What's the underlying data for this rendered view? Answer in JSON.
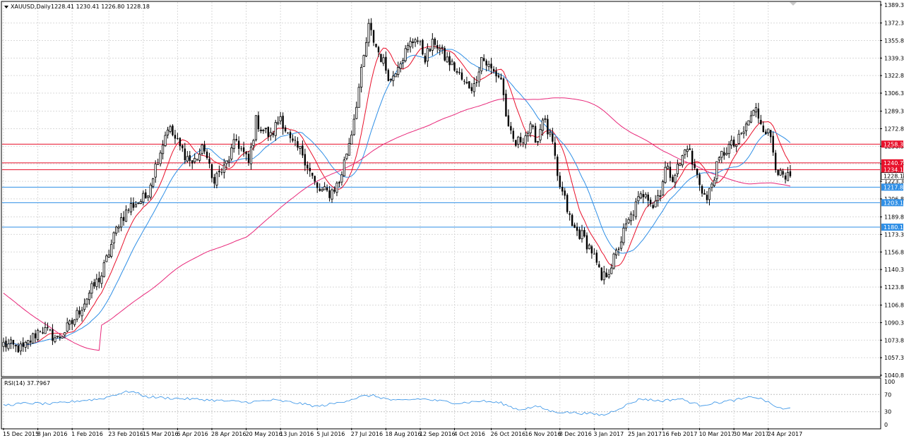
{
  "chart_header": {
    "symbol": "XAUUSD,Daily",
    "ohlc": "1228.41 1230.41 1226.80 1228.18"
  },
  "indicator_header": "RSI(14) 37.7967",
  "colors": {
    "up_candle": "#000000",
    "down_candle": "#000000",
    "ma_fast": "#e8102a",
    "ma_mid": "#2f8fe6",
    "ma_slow": "#e8287a",
    "level_red": "#e8102a",
    "level_blue": "#2f8fe6",
    "rsi_line": "#2f8fe6",
    "grid": "#d9d9d9"
  },
  "chart_data": [
    {
      "type": "candlestick",
      "title": "XAUUSD,Daily",
      "ylim": [
        1040.8,
        1389.3
      ],
      "y_ticks": [
        1389.3,
        1372.3,
        1355.8,
        1339.3,
        1322.8,
        1306.3,
        1289.3,
        1272.8,
        1256.3,
        1239.8,
        1223.3,
        1206.8,
        1189.8,
        1173.3,
        1156.8,
        1140.3,
        1123.8,
        1106.8,
        1090.3,
        1073.8,
        1057.3,
        1040.8
      ],
      "x_ticks": [
        "15 Dec 2015",
        "8 Jan 2016",
        "1 Feb 2016",
        "23 Feb 2016",
        "15 Mar 2016",
        "6 Apr 2016",
        "28 Apr 2016",
        "20 May 2016",
        "13 Jun 2016",
        "5 Jul 2016",
        "27 Jul 2016",
        "18 Aug 2016",
        "12 Sep 2016",
        "4 Oct 2016",
        "26 Oct 2016",
        "16 Nov 2016",
        "8 Dec 2016",
        "3 Jan 2017",
        "25 Jan 2017",
        "16 Feb 2017",
        "10 Mar 2017",
        "30 Mar 2017",
        "24 Apr 2017"
      ],
      "price_path": [
        [
          0,
          1070
        ],
        [
          8,
          1065
        ],
        [
          15,
          1085
        ],
        [
          22,
          1075
        ],
        [
          28,
          1090
        ],
        [
          35,
          1118
        ],
        [
          40,
          1135
        ],
        [
          47,
          1185
        ],
        [
          52,
          1200
        ],
        [
          58,
          1208
        ],
        [
          63,
          1245
        ],
        [
          67,
          1275
        ],
        [
          72,
          1255
        ],
        [
          77,
          1240
        ],
        [
          82,
          1255
        ],
        [
          85,
          1225
        ],
        [
          90,
          1235
        ],
        [
          95,
          1262
        ],
        [
          100,
          1240
        ],
        [
          103,
          1280
        ],
        [
          106,
          1272
        ],
        [
          109,
          1265
        ],
        [
          113,
          1285
        ],
        [
          117,
          1260
        ],
        [
          122,
          1250
        ],
        [
          128,
          1215
        ],
        [
          133,
          1212
        ],
        [
          137,
          1222
        ],
        [
          142,
          1270
        ],
        [
          146,
          1325
        ],
        [
          149,
          1368
        ],
        [
          152,
          1350
        ],
        [
          155,
          1335
        ],
        [
          158,
          1318
        ],
        [
          161,
          1335
        ],
        [
          164,
          1345
        ],
        [
          168,
          1360
        ],
        [
          172,
          1340
        ],
        [
          176,
          1355
        ],
        [
          180,
          1340
        ],
        [
          184,
          1330
        ],
        [
          188,
          1315
        ],
        [
          192,
          1312
        ],
        [
          195,
          1340
        ],
        [
          199,
          1328
        ],
        [
          203,
          1320
        ],
        [
          206,
          1270
        ],
        [
          209,
          1258
        ],
        [
          212,
          1265
        ],
        [
          215,
          1272
        ],
        [
          218,
          1262
        ],
        [
          220,
          1285
        ],
        [
          222,
          1270
        ],
        [
          224,
          1258
        ],
        [
          226,
          1225
        ],
        [
          229,
          1205
        ],
        [
          232,
          1180
        ],
        [
          236,
          1172
        ],
        [
          240,
          1158
        ],
        [
          244,
          1130
        ],
        [
          247,
          1140
        ],
        [
          250,
          1155
        ],
        [
          253,
          1175
        ],
        [
          256,
          1190
        ],
        [
          259,
          1205
        ],
        [
          262,
          1215
        ],
        [
          265,
          1200
        ],
        [
          268,
          1215
        ],
        [
          270,
          1235
        ],
        [
          273,
          1228
        ],
        [
          276,
          1240
        ],
        [
          279,
          1258
        ],
        [
          281,
          1240
        ],
        [
          284,
          1222
        ],
        [
          287,
          1205
        ],
        [
          290,
          1230
        ],
        [
          293,
          1248
        ],
        [
          296,
          1256
        ],
        [
          299,
          1258
        ],
        [
          302,
          1270
        ],
        [
          305,
          1285
        ],
        [
          307,
          1290
        ],
        [
          310,
          1275
        ],
        [
          313,
          1265
        ],
        [
          315,
          1240
        ],
        [
          317,
          1228
        ],
        [
          319,
          1224
        ],
        [
          321,
          1228
        ]
      ],
      "rsi_path": [
        [
          0,
          45
        ],
        [
          10,
          50
        ],
        [
          20,
          48
        ],
        [
          30,
          55
        ],
        [
          40,
          60
        ],
        [
          47,
          72
        ],
        [
          52,
          78
        ],
        [
          58,
          65
        ],
        [
          66,
          62
        ],
        [
          74,
          60
        ],
        [
          82,
          58
        ],
        [
          90,
          55
        ],
        [
          100,
          52
        ],
        [
          110,
          57
        ],
        [
          120,
          50
        ],
        [
          128,
          42
        ],
        [
          136,
          50
        ],
        [
          146,
          65
        ],
        [
          150,
          68
        ],
        [
          160,
          55
        ],
        [
          170,
          60
        ],
        [
          178,
          55
        ],
        [
          186,
          50
        ],
        [
          195,
          55
        ],
        [
          203,
          50
        ],
        [
          210,
          35
        ],
        [
          218,
          42
        ],
        [
          224,
          30
        ],
        [
          232,
          28
        ],
        [
          240,
          25
        ],
        [
          245,
          22
        ],
        [
          252,
          40
        ],
        [
          260,
          60
        ],
        [
          268,
          55
        ],
        [
          276,
          60
        ],
        [
          284,
          45
        ],
        [
          290,
          50
        ],
        [
          296,
          55
        ],
        [
          302,
          60
        ],
        [
          306,
          65
        ],
        [
          310,
          58
        ],
        [
          314,
          45
        ],
        [
          318,
          35
        ],
        [
          321,
          38
        ]
      ],
      "series": [
        {
          "name": "",
          "kind": "ma",
          "period": 10
        },
        {
          "name": "",
          "kind": "ma",
          "period": 20
        },
        {
          "name": "",
          "kind": "ma",
          "period": 100
        }
      ],
      "horizontal_levels": [
        {
          "value": 1258.32,
          "label": "1258.32",
          "color": "red"
        },
        {
          "value": 1240.71,
          "label": "1240.71",
          "color": "red"
        },
        {
          "value": 1234.19,
          "label": "1234.19",
          "color": "red"
        },
        {
          "value": 1217.81,
          "label": "1217.81",
          "color": "blue"
        },
        {
          "value": 1203.19,
          "label": "1203.19",
          "color": "blue"
        },
        {
          "value": 1180.17,
          "label": "1180.17",
          "color": "blue"
        }
      ],
      "current_price": {
        "value": 1228.18,
        "label": "1228.18"
      }
    },
    {
      "type": "line",
      "title": "RSI(14) 37.7967",
      "ylim": [
        0,
        100
      ],
      "y_ticks": [
        100,
        70,
        30,
        0
      ]
    }
  ]
}
